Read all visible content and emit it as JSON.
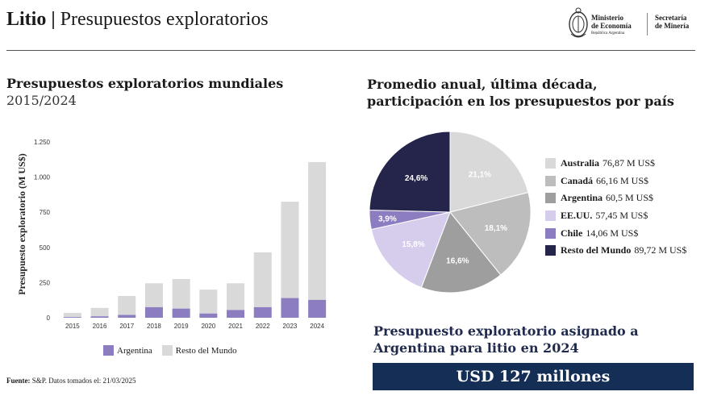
{
  "header": {
    "title_bold": "Litio",
    "title_sep": " | ",
    "title_rest": "Presupuestos exploratorios",
    "ministerio_l1": "Ministerio",
    "ministerio_l2": "de Economía",
    "ministerio_l3": "República Argentina",
    "secretaria_l1": "Secretaría",
    "secretaria_l2": "de Minería"
  },
  "colors": {
    "argentina_bar": "#8c7cc0",
    "resto_bar": "#d9d9d9",
    "navy": "#142e56",
    "pie": [
      "#d9d9d9",
      "#bdbdbd",
      "#9e9e9e",
      "#d6cdec",
      "#8c7cc0",
      "#25244a"
    ]
  },
  "left_chart": {
    "title": "Presupuestos exploratorios mundiales",
    "subtitle": "2015/2024"
  },
  "right_chart": {
    "title": "Promedio anual, última década, participación en los presupuestos por país"
  },
  "chart_data": [
    {
      "type": "bar",
      "stacked": true,
      "ylabel": "Presupuesto exploratorio (M US$)",
      "ylim": [
        0,
        1250
      ],
      "yticks": [
        0,
        250,
        500,
        750,
        1000,
        1250
      ],
      "ytick_labels": [
        "0",
        "250",
        "500",
        "750",
        "1.000",
        "1.250"
      ],
      "categories": [
        "2015",
        "2016",
        "2017",
        "2018",
        "2019",
        "2020",
        "2021",
        "2022",
        "2023",
        "2024"
      ],
      "series": [
        {
          "name": "Argentina",
          "values": [
            5,
            10,
            20,
            75,
            65,
            30,
            55,
            75,
            140,
            127
          ]
        },
        {
          "name": "Resto del Mundo",
          "values": [
            30,
            60,
            135,
            170,
            210,
            170,
            190,
            390,
            685,
            980
          ]
        }
      ]
    },
    {
      "type": "pie",
      "labels": [
        "Australia",
        "Canadá",
        "Argentina",
        "EE.UU.",
        "Chile",
        "Resto del Mundo"
      ],
      "values": [
        76.87,
        66.16,
        60.5,
        57.45,
        14.06,
        89.72
      ],
      "value_labels": [
        "76,87 M US$",
        "66,16 M US$",
        "60,5 M US$",
        "57,45 M US$",
        "14,06 M US$",
        "89,72 M US$"
      ],
      "percent_labels": [
        "21,1%",
        "18,1%",
        "16,6%",
        "15,8%",
        "3,9%",
        "24,6%"
      ]
    }
  ],
  "bar_legend": {
    "argentina": "Argentina",
    "resto": "Resto del Mundo"
  },
  "source": {
    "label": "Fuente:",
    "text": " S&P. Datos tomados el: 21/03/2025"
  },
  "argentina_box": {
    "title": "Presupuesto exploratorio asignado a Argentina para litio en 2024",
    "value": "USD 127 millones"
  }
}
